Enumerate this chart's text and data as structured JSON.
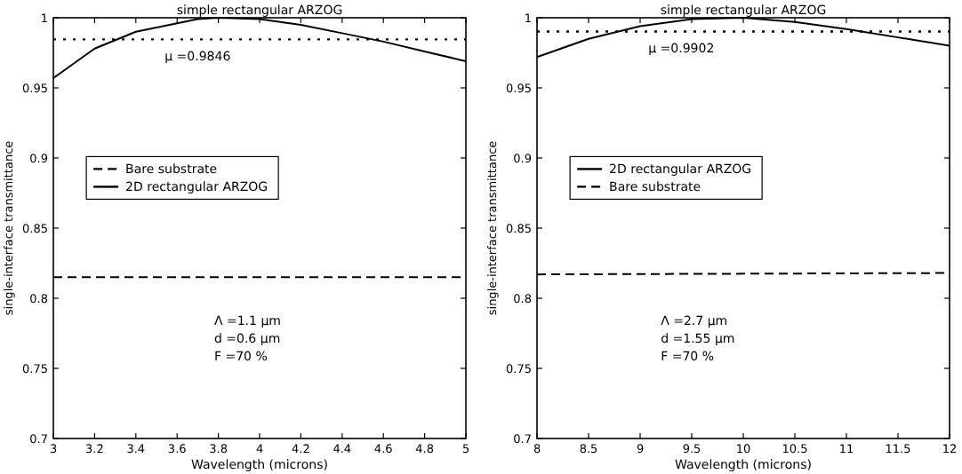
{
  "chart_data": [
    {
      "type": "line",
      "title": "simple rectangular ARZOG",
      "xlabel": "Wavelength (microns)",
      "ylabel": "single-interface transmittance",
      "xlim": [
        3,
        5
      ],
      "xticks": [
        3,
        3.2,
        3.4,
        3.6,
        3.8,
        4,
        4.2,
        4.4,
        4.6,
        4.8,
        5
      ],
      "ylim": [
        0.7,
        1
      ],
      "yticks": [
        0.7,
        0.75,
        0.8,
        0.85,
        0.9,
        0.95,
        1
      ],
      "legend": "left",
      "series": [
        {
          "name": "Bare substrate",
          "color": "#000000",
          "line_style": "dashed",
          "x": [
            3,
            5
          ],
          "values": [
            0.815,
            0.815
          ]
        },
        {
          "name": "2D rectangular ARZOG",
          "color": "#000000",
          "line_style": "solid",
          "x": [
            3,
            3.2,
            3.4,
            3.6,
            3.7,
            3.8,
            4,
            4.2,
            4.4,
            4.6,
            4.8,
            5
          ],
          "values": [
            0.957,
            0.978,
            0.99,
            0.996,
            0.999,
            1,
            0.999,
            0.995,
            0.989,
            0.983,
            0.976,
            0.969
          ]
        }
      ],
      "ref_lines": [
        {
          "axis": "y",
          "value": 0.9846,
          "label": "μ =0.9846",
          "line_style": "dotted",
          "color": "#000000"
        }
      ],
      "annotations": [
        "Λ =1.1 μm",
        "d =0.6 μm",
        "F =70 %"
      ]
    },
    {
      "type": "line",
      "title": "simple rectangular ARZOG",
      "xlabel": "Wavelength (microns)",
      "ylabel": "single-interface transmittance",
      "xlim": [
        8,
        12
      ],
      "xticks": [
        8,
        8.5,
        9,
        9.5,
        10,
        10.5,
        11,
        11.5,
        12
      ],
      "ylim": [
        0.7,
        1
      ],
      "yticks": [
        0.7,
        0.75,
        0.8,
        0.85,
        0.9,
        0.95,
        1
      ],
      "legend": "left",
      "series": [
        {
          "name": "2D rectangular ARZOG",
          "color": "#000000",
          "line_style": "solid",
          "x": [
            8,
            8.5,
            9,
            9.5,
            10,
            10.5,
            11,
            11.5,
            12
          ],
          "values": [
            0.972,
            0.985,
            0.994,
            0.999,
            1,
            0.997,
            0.992,
            0.986,
            0.98
          ]
        },
        {
          "name": "Bare substrate",
          "color": "#000000",
          "line_style": "dashed",
          "x": [
            8,
            12
          ],
          "values": [
            0.817,
            0.818
          ]
        }
      ],
      "ref_lines": [
        {
          "axis": "y",
          "value": 0.9902,
          "label": "μ =0.9902",
          "line_style": "dotted",
          "color": "#000000"
        }
      ],
      "annotations": [
        "Λ =2.7 μm",
        "d =1.55 μm",
        "F =70 %"
      ]
    }
  ]
}
